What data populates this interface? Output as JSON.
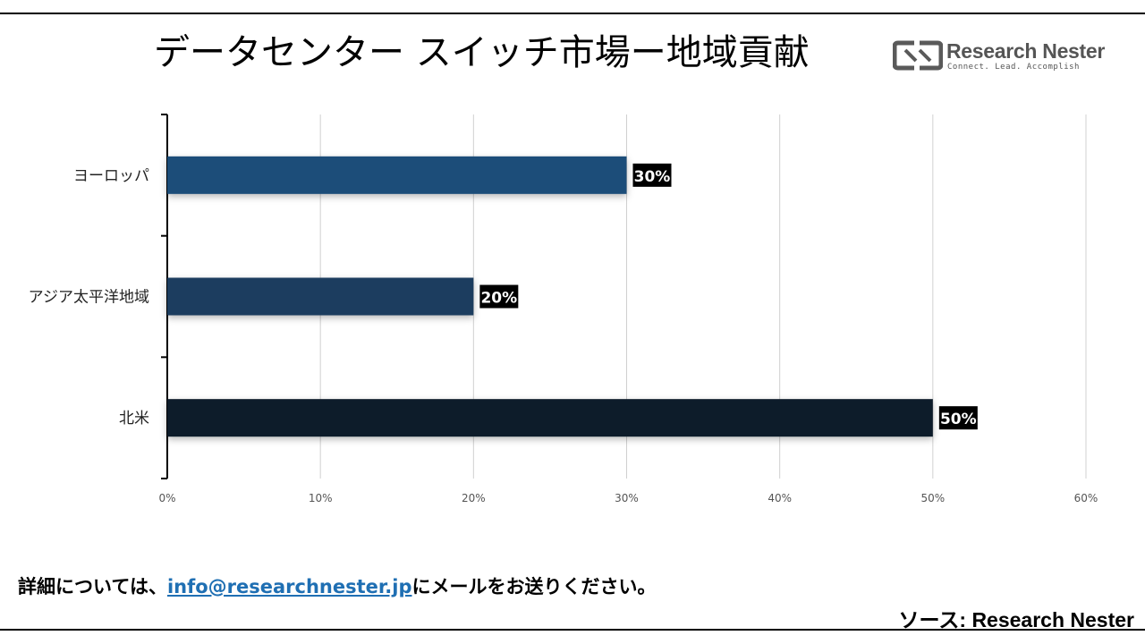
{
  "header": {
    "title": "データセンター スイッチ市場ー地域貢献",
    "logo_name": "Research Nester",
    "logo_tagline": "Connect. Lead. Accomplish"
  },
  "colors": {
    "europe": "#1f4e79",
    "apac": "#1a3c5e",
    "north_america": "#0d1b2a",
    "label_bg": "#000000",
    "link": "#1f6fb3",
    "gridline": "#d0d0d0"
  },
  "chart_data": {
    "type": "bar",
    "orientation": "horizontal",
    "title": "",
    "categories": [
      "ヨーロッパ",
      "アジア太平洋地域",
      "北米"
    ],
    "values": [
      30,
      20,
      50
    ],
    "data_labels": [
      "30%",
      "20%",
      "50%"
    ],
    "xlim": [
      0,
      60
    ],
    "x_ticks": [
      "0%",
      "10%",
      "20%",
      "30%",
      "40%",
      "50%",
      "60%"
    ],
    "grid": true,
    "legend": "none"
  },
  "footer": {
    "text_before": "詳細については、",
    "email": "info@researchnester.jp",
    "text_after": "にメールをお送りください。",
    "source": "ソース: Research Nester"
  }
}
